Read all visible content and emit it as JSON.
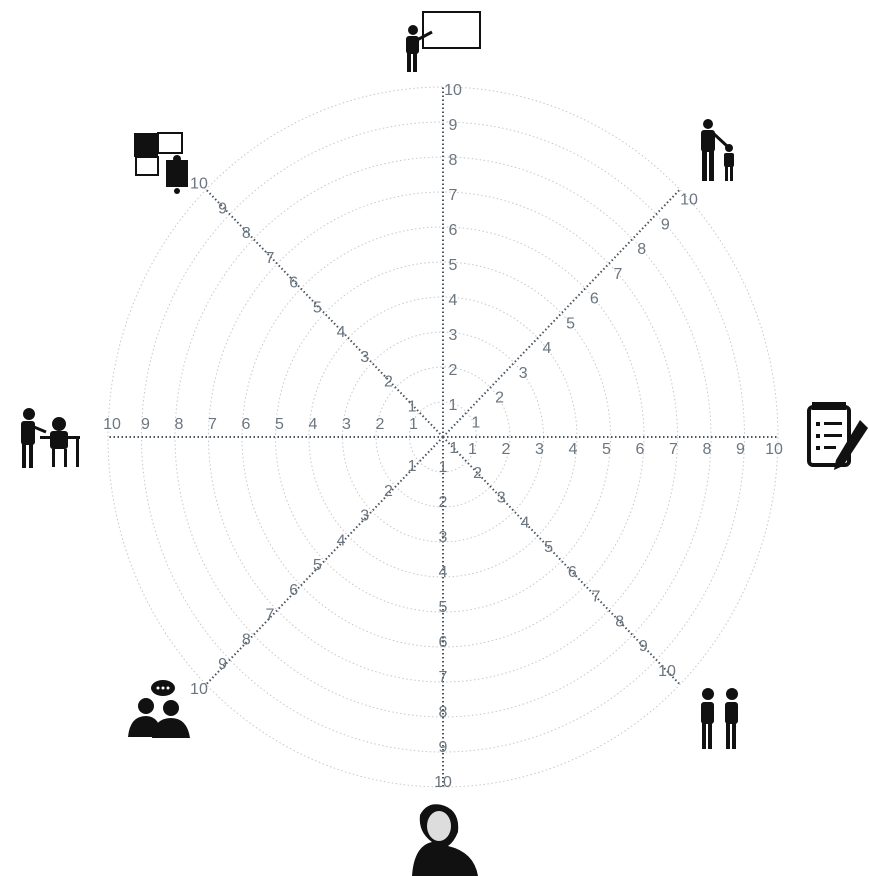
{
  "scale": {
    "ticks": [
      1,
      2,
      3,
      4,
      5,
      6,
      7,
      8,
      9,
      10
    ]
  }
}
